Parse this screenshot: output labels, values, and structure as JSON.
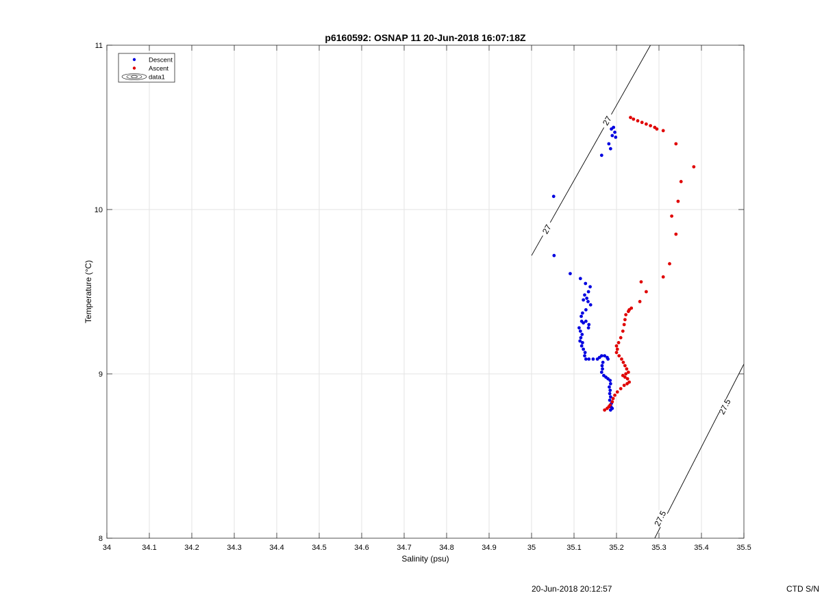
{
  "chart_data": {
    "type": "scatter",
    "title": "p6160592: OSNAP 11 20-Jun-2018 16:07:18Z",
    "xlabel": "Salinity (psu)",
    "ylabel": "Temperature (°C)",
    "xlim": [
      34,
      35.5
    ],
    "ylim": [
      8,
      11
    ],
    "xticks": [
      34,
      34.1,
      34.2,
      34.3,
      34.4,
      34.5,
      34.6,
      34.7,
      34.8,
      34.9,
      35,
      35.1,
      35.2,
      35.3,
      35.4,
      35.5
    ],
    "xtick_labels": [
      "34",
      "34.1",
      "34.2",
      "34.3",
      "34.4",
      "34.5",
      "34.6",
      "34.7",
      "34.8",
      "34.9",
      "35",
      "35.1",
      "35.2",
      "35.3",
      "35.4",
      "35.5"
    ],
    "yticks": [
      8,
      9,
      10,
      11
    ],
    "ytick_labels": [
      "8",
      "9",
      "10",
      "11"
    ],
    "grid": true,
    "legend_position": "top-left",
    "legend": [
      {
        "label": "Descent",
        "color": "#0000e0",
        "marker": "dot"
      },
      {
        "label": "Ascent",
        "color": "#e00000",
        "marker": "dot"
      },
      {
        "label": "data1",
        "color": "#000000",
        "marker": "contour"
      }
    ],
    "series": [
      {
        "name": "Descent",
        "color": "#0000e0",
        "points": [
          [
            35.193,
            10.5
          ],
          [
            35.188,
            10.49
          ],
          [
            35.196,
            10.47
          ],
          [
            35.19,
            10.45
          ],
          [
            35.198,
            10.44
          ],
          [
            35.182,
            10.4
          ],
          [
            35.186,
            10.37
          ],
          [
            35.165,
            10.33
          ],
          [
            35.052,
            10.08
          ],
          [
            35.053,
            9.72
          ],
          [
            35.091,
            9.61
          ],
          [
            35.115,
            9.58
          ],
          [
            35.127,
            9.55
          ],
          [
            35.138,
            9.53
          ],
          [
            35.134,
            9.5
          ],
          [
            35.125,
            9.48
          ],
          [
            35.13,
            9.46
          ],
          [
            35.122,
            9.45
          ],
          [
            35.133,
            9.44
          ],
          [
            35.139,
            9.42
          ],
          [
            35.128,
            9.39
          ],
          [
            35.12,
            9.37
          ],
          [
            35.117,
            9.35
          ],
          [
            35.118,
            9.32
          ],
          [
            35.122,
            9.31
          ],
          [
            35.128,
            9.32
          ],
          [
            35.135,
            9.3
          ],
          [
            35.134,
            9.28
          ],
          [
            35.112,
            9.28
          ],
          [
            35.115,
            9.26
          ],
          [
            35.119,
            9.24
          ],
          [
            35.116,
            9.22
          ],
          [
            35.114,
            9.2
          ],
          [
            35.12,
            9.19
          ],
          [
            35.118,
            9.17
          ],
          [
            35.122,
            9.15
          ],
          [
            35.126,
            9.13
          ],
          [
            35.125,
            9.11
          ],
          [
            35.128,
            9.09
          ],
          [
            35.135,
            9.09
          ],
          [
            35.145,
            9.09
          ],
          [
            35.155,
            9.09
          ],
          [
            35.16,
            9.1
          ],
          [
            35.165,
            9.11
          ],
          [
            35.172,
            9.11
          ],
          [
            35.178,
            9.1
          ],
          [
            35.18,
            9.09
          ],
          [
            35.168,
            9.07
          ],
          [
            35.166,
            9.05
          ],
          [
            35.167,
            9.03
          ],
          [
            35.165,
            9.01
          ],
          [
            35.17,
            8.99
          ],
          [
            35.175,
            8.98
          ],
          [
            35.18,
            8.97
          ],
          [
            35.185,
            8.96
          ],
          [
            35.186,
            8.94
          ],
          [
            35.183,
            8.92
          ],
          [
            35.185,
            8.9
          ],
          [
            35.184,
            8.88
          ],
          [
            35.186,
            8.86
          ],
          [
            35.184,
            8.84
          ],
          [
            35.188,
            8.82
          ],
          [
            35.187,
            8.8
          ],
          [
            35.19,
            8.79
          ],
          [
            35.186,
            8.78
          ]
        ]
      },
      {
        "name": "Ascent",
        "color": "#e00000",
        "points": [
          [
            35.172,
            8.78
          ],
          [
            35.178,
            8.79
          ],
          [
            35.182,
            8.8
          ],
          [
            35.185,
            8.81
          ],
          [
            35.19,
            8.83
          ],
          [
            35.192,
            8.85
          ],
          [
            35.196,
            8.87
          ],
          [
            35.202,
            8.89
          ],
          [
            35.21,
            8.91
          ],
          [
            35.218,
            8.93
          ],
          [
            35.225,
            8.94
          ],
          [
            35.23,
            8.95
          ],
          [
            35.226,
            8.97
          ],
          [
            35.22,
            8.98
          ],
          [
            35.215,
            8.99
          ],
          [
            35.222,
            9.0
          ],
          [
            35.228,
            9.01
          ],
          [
            35.224,
            9.03
          ],
          [
            35.22,
            9.05
          ],
          [
            35.216,
            9.07
          ],
          [
            35.212,
            9.09
          ],
          [
            35.206,
            9.11
          ],
          [
            35.2,
            9.13
          ],
          [
            35.202,
            9.15
          ],
          [
            35.2,
            9.17
          ],
          [
            35.205,
            9.19
          ],
          [
            35.21,
            9.22
          ],
          [
            35.215,
            9.26
          ],
          [
            35.218,
            9.3
          ],
          [
            35.22,
            9.33
          ],
          [
            35.222,
            9.36
          ],
          [
            35.228,
            9.38
          ],
          [
            35.23,
            9.39
          ],
          [
            35.235,
            9.4
          ],
          [
            35.255,
            9.44
          ],
          [
            35.27,
            9.5
          ],
          [
            35.258,
            9.56
          ],
          [
            35.31,
            9.59
          ],
          [
            35.325,
            9.67
          ],
          [
            35.34,
            9.85
          ],
          [
            35.33,
            9.96
          ],
          [
            35.345,
            10.05
          ],
          [
            35.352,
            10.17
          ],
          [
            35.382,
            10.26
          ],
          [
            35.34,
            10.4
          ],
          [
            35.31,
            10.48
          ],
          [
            35.295,
            10.49
          ],
          [
            35.29,
            10.5
          ],
          [
            35.28,
            10.51
          ],
          [
            35.27,
            10.52
          ],
          [
            35.26,
            10.53
          ],
          [
            35.25,
            10.54
          ],
          [
            35.24,
            10.55
          ],
          [
            35.233,
            10.56
          ]
        ]
      }
    ],
    "contour_lines": [
      {
        "label": "27",
        "points": [
          [
            35.0,
            9.72
          ],
          [
            35.28,
            11.0
          ]
        ]
      },
      {
        "label": "27.5",
        "points": [
          [
            35.29,
            8.0
          ],
          [
            35.5,
            9.06
          ]
        ]
      }
    ],
    "contour_labels": [
      {
        "text": "27",
        "at": [
          35.178,
          10.54
        ]
      },
      {
        "text": "27",
        "at": [
          35.036,
          9.88
        ]
      },
      {
        "text": "27.5",
        "at": [
          35.455,
          8.8
        ]
      },
      {
        "text": "27.5",
        "at": [
          35.303,
          8.12
        ]
      }
    ]
  },
  "footer": {
    "timestamp": "20-Jun-2018 20:12:57",
    "serial": "CTD S/N"
  }
}
